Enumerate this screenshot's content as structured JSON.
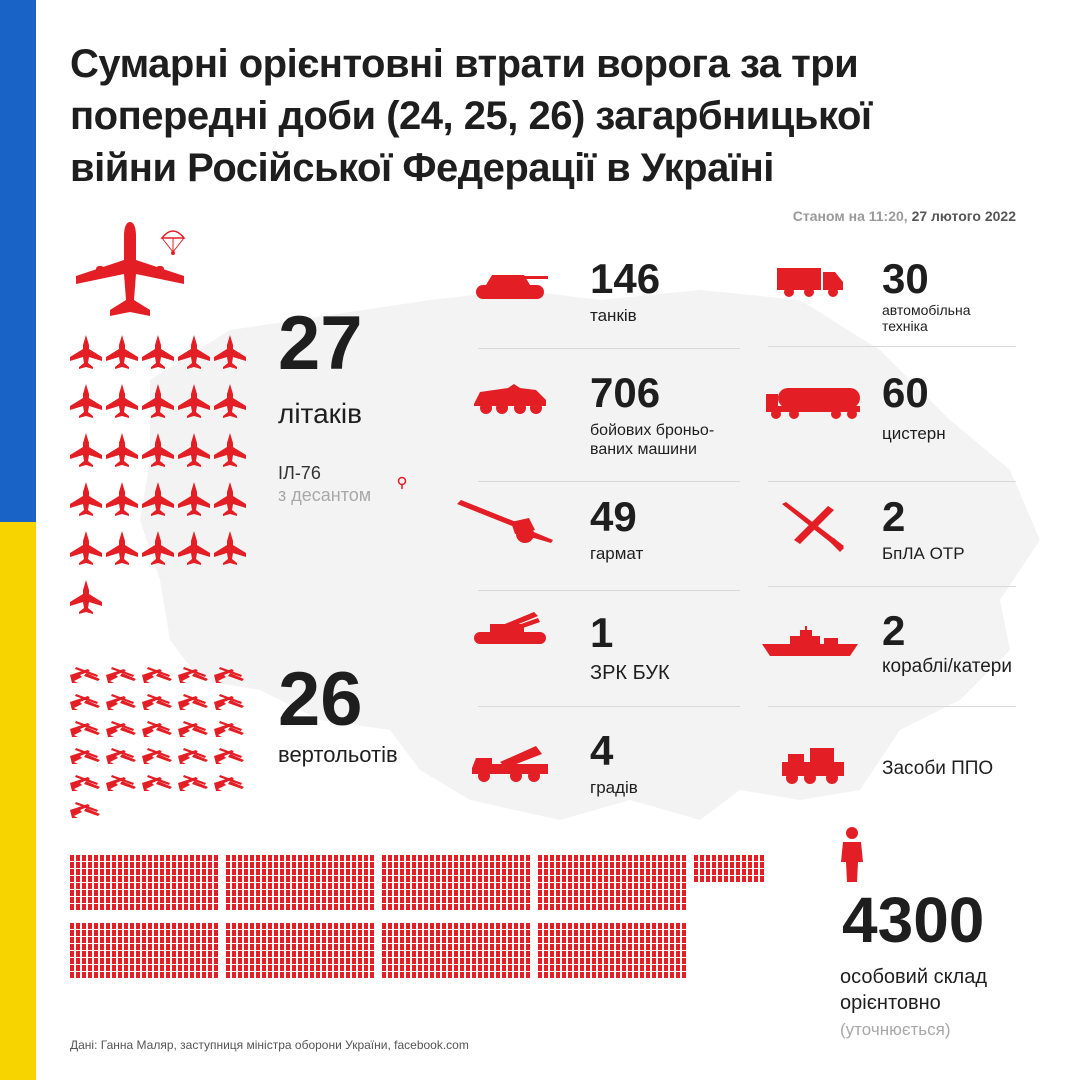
{
  "title_lines": [
    "Сумарні орієнтовні втрати ворога за три",
    "попередні доби (24, 25, 26) загарбницької",
    "війни Російської Федерації в Україні"
  ],
  "as_of": {
    "prefix": "Станом на 11:20,",
    "date": "27 лютого 2022"
  },
  "colors": {
    "accent": "#e31e24",
    "flag_blue": "#1a63c6",
    "flag_yellow": "#f7d300",
    "map": "#f3f3f3",
    "text": "#1e1e1e"
  },
  "aircraft": {
    "number": "27",
    "label": "літаків",
    "note_line1": "ІЛ-76",
    "note_line2": "з десантом",
    "icon_count": 26,
    "big_icon": "il76-transport-plane-icon",
    "icon": "fighter-jet-icon"
  },
  "helicopters": {
    "number": "26",
    "label": "вертольотів",
    "icon_count": 26,
    "icon": "helicopter-icon"
  },
  "stats_left": [
    {
      "id": "tanks",
      "number": "146",
      "label_lines": [
        "танків"
      ],
      "icon": "tank-icon"
    },
    {
      "id": "ifv",
      "number": "706",
      "label_lines": [
        "бойових броньо-",
        "ваних машини"
      ],
      "icon": "armored-vehicle-icon"
    },
    {
      "id": "artillery",
      "number": "49",
      "label_lines": [
        "гармат"
      ],
      "icon": "artillery-gun-icon"
    },
    {
      "id": "buk",
      "number": "1",
      "label_lines": [
        "ЗРК БУК"
      ],
      "icon": "buk-missile-system-icon"
    },
    {
      "id": "grad",
      "number": "4",
      "label_lines": [
        "градів"
      ],
      "icon": "grad-rocket-launcher-icon"
    }
  ],
  "stats_right": [
    {
      "id": "trucks",
      "number": "30",
      "label_lines": [
        "автомобільна",
        "техніка"
      ],
      "icon": "truck-icon"
    },
    {
      "id": "tankers",
      "number": "60",
      "label_lines": [
        "цистерн"
      ],
      "icon": "fuel-tanker-icon"
    },
    {
      "id": "uav",
      "number": "2",
      "label_lines": [
        "БпЛА ОТР"
      ],
      "icon": "drone-icon"
    },
    {
      "id": "ships",
      "number": "2",
      "label_lines": [
        "кораблі/катери"
      ],
      "icon": "warship-icon"
    },
    {
      "id": "air_defense",
      "number": "",
      "label_lines": [
        "Засоби ППО"
      ],
      "icon": "air-defense-icon"
    }
  ],
  "personnel": {
    "number": "4300",
    "label_line1": "особовий склад",
    "label_line2": "орієнтовно",
    "note": "(уточнюється)",
    "icon": "soldier-icon"
  },
  "source": "Дані: Ганна Маляр, заступниця міністра оборони України, facebook.com"
}
